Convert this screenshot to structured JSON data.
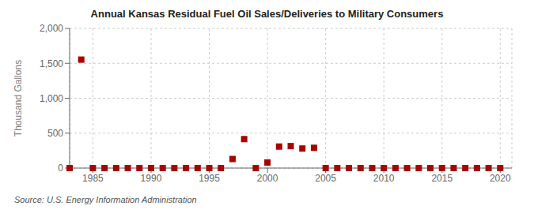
{
  "chart_data": {
    "type": "scatter",
    "title": "Annual Kansas Residual Fuel Oil Sales/Deliveries to Military Consumers",
    "ylabel": "Thousand Gallons",
    "source": "Source: U.S. Energy Information Administration",
    "color": "#aa0000",
    "marker": "square",
    "grid": true,
    "xlim": [
      1983,
      2021
    ],
    "xticks": [
      1985,
      1990,
      1995,
      2000,
      2005,
      2010,
      2015,
      2020
    ],
    "ylim": [
      0,
      2000
    ],
    "yticks": [
      0,
      500,
      {
        "value": 1000,
        "label": "1,000"
      },
      {
        "value": 1500,
        "label": "1,500"
      },
      {
        "value": 2000,
        "label": "2,000"
      }
    ],
    "x": [
      1983,
      1984,
      1985,
      1986,
      1987,
      1988,
      1989,
      1990,
      1991,
      1992,
      1993,
      1994,
      1995,
      1996,
      1997,
      1998,
      1999,
      2000,
      2001,
      2002,
      2003,
      2004,
      2005,
      2006,
      2007,
      2008,
      2009,
      2010,
      2011,
      2012,
      2013,
      2014,
      2015,
      2016,
      2017,
      2018,
      2019,
      2020
    ],
    "values": [
      0,
      1553,
      0,
      0,
      0,
      0,
      0,
      0,
      0,
      0,
      0,
      0,
      0,
      0,
      130,
      415,
      0,
      80,
      308,
      315,
      280,
      290,
      0,
      0,
      0,
      0,
      0,
      0,
      0,
      0,
      0,
      0,
      0,
      0,
      0,
      0,
      0,
      0
    ]
  }
}
